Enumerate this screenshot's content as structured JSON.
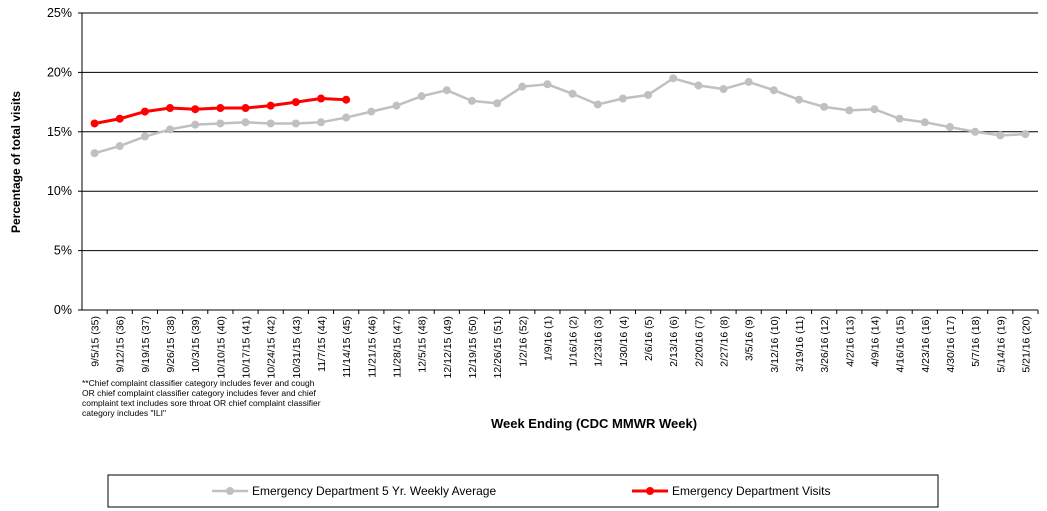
{
  "chart_data": {
    "type": "line",
    "y_label": "Percentage of total visits",
    "x_label": "Week Ending (CDC MMWR Week)",
    "note": [
      "**Chief complaint classifier category includes fever and cough",
      "OR chief complaint classifier category includes fever and chief",
      "complaint text includes sore throat OR chief complaint classifier",
      "category includes \"ILI\""
    ],
    "categories": [
      "9/5/15 (35)",
      "9/12/15 (36)",
      "9/19/15 (37)",
      "9/26/15 (38)",
      "10/3/15 (39)",
      "10/10/15 (40)",
      "10/17/15 (41)",
      "10/24/15 (42)",
      "10/31/15 (43)",
      "11/7/15 (44)",
      "11/14/15 (45)",
      "11/21/15 (46)",
      "11/28/15 (47)",
      "12/5/15 (48)",
      "12/12/15 (49)",
      "12/19/15 (50)",
      "12/26/15 (51)",
      "1/2/16 (52)",
      "1/9/16 (1)",
      "1/16/16 (2)",
      "1/23/16 (3)",
      "1/30/16 (4)",
      "2/6/16 (5)",
      "2/13/16 (6)",
      "2/20/16 (7)",
      "2/27/16 (8)",
      "3/5/16 (9)",
      "3/12/16 (10)",
      "3/19/16 (11)",
      "3/26/16 (12)",
      "4/2/16 (13)",
      "4/9/16 (14)",
      "4/16/16 (15)",
      "4/23/16 (16)",
      "4/30/16 (17)",
      "5/7/16 (18)",
      "5/14/16 (19)",
      "5/21/16 (20)"
    ],
    "series": [
      {
        "name": "Emergency Department 5 Yr. Weekly Average",
        "color": "#c0c0c0",
        "values": [
          13.2,
          13.8,
          14.6,
          15.2,
          15.6,
          15.7,
          15.8,
          15.7,
          15.7,
          15.8,
          16.2,
          16.7,
          17.2,
          18.0,
          18.5,
          17.6,
          17.4,
          18.8,
          19.0,
          18.2,
          17.3,
          17.8,
          18.1,
          19.5,
          18.9,
          18.6,
          19.2,
          18.5,
          17.7,
          17.1,
          16.8,
          16.9,
          16.1,
          15.8,
          15.4,
          15.0,
          14.7,
          14.8
        ]
      },
      {
        "name": "Emergency Department Visits",
        "color": "#ff0000",
        "values": [
          15.7,
          16.1,
          16.7,
          17.0,
          16.9,
          17.0,
          17.0,
          17.2,
          17.5,
          17.8,
          17.7,
          null,
          null,
          null,
          null,
          null,
          null,
          null,
          null,
          null,
          null,
          null,
          null,
          null,
          null,
          null,
          null,
          null,
          null,
          null,
          null,
          null,
          null,
          null,
          null,
          null,
          null,
          null
        ]
      }
    ],
    "ylim": [
      0,
      25
    ],
    "yticks": [
      {
        "value": 0,
        "label": "0%"
      },
      {
        "value": 5,
        "label": "5%"
      },
      {
        "value": 10,
        "label": "10%"
      },
      {
        "value": 15,
        "label": "15%"
      },
      {
        "value": 20,
        "label": "20%"
      },
      {
        "value": 25,
        "label": "25%"
      }
    ],
    "grid": true,
    "legend": "bottom"
  }
}
